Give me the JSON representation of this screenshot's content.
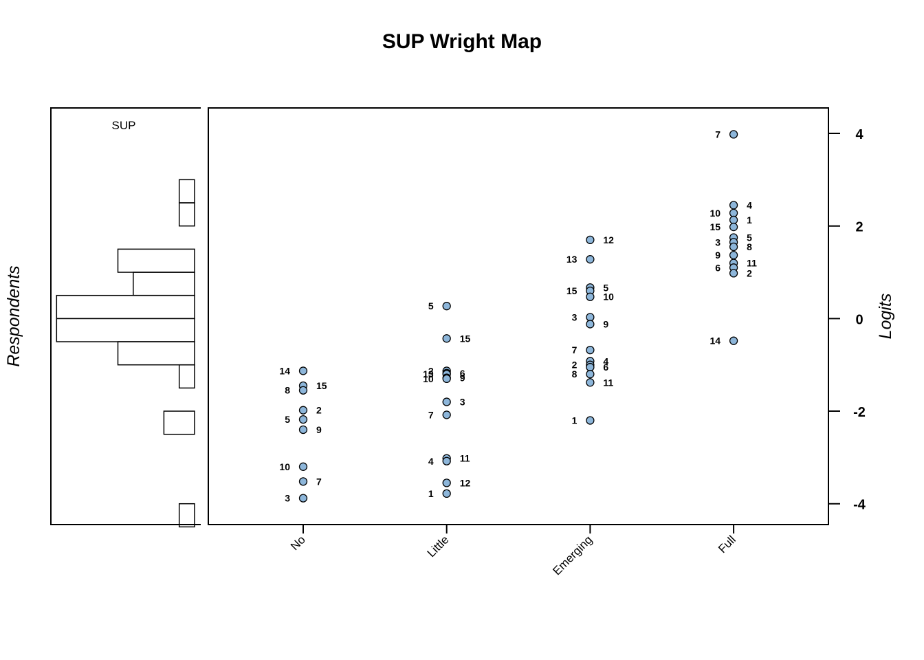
{
  "chart_data": {
    "type": "scatter",
    "title": "SUP Wright Map",
    "person_panel": {
      "label": "Respondents",
      "title": "SUP",
      "histogram": [
        {
          "from": 2.5,
          "to": 3.0,
          "count": 1
        },
        {
          "from": 2.0,
          "to": 2.5,
          "count": 1
        },
        {
          "from": 1.5,
          "to": 2.0,
          "count": 0
        },
        {
          "from": 1.0,
          "to": 1.5,
          "count": 5
        },
        {
          "from": 0.5,
          "to": 1.0,
          "count": 4
        },
        {
          "from": 0.0,
          "to": 0.5,
          "count": 9
        },
        {
          "from": -0.5,
          "to": 0.0,
          "count": 9
        },
        {
          "from": -1.0,
          "to": -0.5,
          "count": 5
        },
        {
          "from": -1.5,
          "to": -1.0,
          "count": 1
        },
        {
          "from": -2.0,
          "to": -1.5,
          "count": 0
        },
        {
          "from": -2.5,
          "to": -2.0,
          "count": 2
        },
        {
          "from": -3.0,
          "to": -2.5,
          "count": 0
        },
        {
          "from": -3.5,
          "to": -3.0,
          "count": 0
        },
        {
          "from": -4.0,
          "to": -3.5,
          "count": 0
        },
        {
          "from": -4.5,
          "to": -4.0,
          "count": 1
        }
      ]
    },
    "ylabel": "Logits",
    "ylim": [
      -4.45,
      4.55
    ],
    "yticks": [
      4,
      2,
      0,
      -2,
      -4
    ],
    "categories": [
      "No",
      "Little",
      "Emerging",
      "Full"
    ],
    "series": [
      {
        "category": "No",
        "points": [
          {
            "label": "14",
            "y": -1.13,
            "side": "left"
          },
          {
            "label": "15",
            "y": -1.45,
            "side": "right"
          },
          {
            "label": "8",
            "y": -1.55,
            "side": "left"
          },
          {
            "label": "2",
            "y": -1.98,
            "side": "right"
          },
          {
            "label": "5",
            "y": -2.18,
            "side": "left"
          },
          {
            "label": "9",
            "y": -2.4,
            "side": "right"
          },
          {
            "label": "10",
            "y": -3.2,
            "side": "left"
          },
          {
            "label": "7",
            "y": -3.52,
            "side": "right"
          },
          {
            "label": "3",
            "y": -3.88,
            "side": "left"
          }
        ]
      },
      {
        "category": "Little",
        "points": [
          {
            "label": "5",
            "y": 0.27,
            "side": "left"
          },
          {
            "label": "15",
            "y": -0.43,
            "side": "right"
          },
          {
            "label": "2",
            "y": -1.13,
            "side": "left"
          },
          {
            "label": "6",
            "y": -1.18,
            "side": "right"
          },
          {
            "label": "13",
            "y": -1.2,
            "side": "left"
          },
          {
            "label": "9",
            "y": -1.28,
            "side": "right"
          },
          {
            "label": "10",
            "y": -1.3,
            "side": "left"
          },
          {
            "label": "3",
            "y": -1.8,
            "side": "right"
          },
          {
            "label": "7",
            "y": -2.08,
            "side": "left"
          },
          {
            "label": "11",
            "y": -3.02,
            "side": "right"
          },
          {
            "label": "4",
            "y": -3.08,
            "side": "left"
          },
          {
            "label": "12",
            "y": -3.55,
            "side": "right"
          },
          {
            "label": "1",
            "y": -3.78,
            "side": "left"
          }
        ]
      },
      {
        "category": "Emerging",
        "points": [
          {
            "label": "12",
            "y": 1.7,
            "side": "right"
          },
          {
            "label": "13",
            "y": 1.28,
            "side": "left"
          },
          {
            "label": "5",
            "y": 0.67,
            "side": "right"
          },
          {
            "label": "15",
            "y": 0.6,
            "side": "left"
          },
          {
            "label": "10",
            "y": 0.47,
            "side": "right"
          },
          {
            "label": "3",
            "y": 0.03,
            "side": "left"
          },
          {
            "label": "9",
            "y": -0.12,
            "side": "right"
          },
          {
            "label": "7",
            "y": -0.68,
            "side": "left"
          },
          {
            "label": "4",
            "y": -0.92,
            "side": "right"
          },
          {
            "label": "2",
            "y": -1.0,
            "side": "left"
          },
          {
            "label": "6",
            "y": -1.05,
            "side": "right"
          },
          {
            "label": "8",
            "y": -1.2,
            "side": "left"
          },
          {
            "label": "11",
            "y": -1.38,
            "side": "right"
          },
          {
            "label": "1",
            "y": -2.2,
            "side": "left"
          }
        ]
      },
      {
        "category": "Full",
        "points": [
          {
            "label": "7",
            "y": 3.98,
            "side": "left"
          },
          {
            "label": "4",
            "y": 2.45,
            "side": "right"
          },
          {
            "label": "10",
            "y": 2.28,
            "side": "left"
          },
          {
            "label": "1",
            "y": 2.13,
            "side": "right"
          },
          {
            "label": "15",
            "y": 1.98,
            "side": "left"
          },
          {
            "label": "5",
            "y": 1.75,
            "side": "right"
          },
          {
            "label": "3",
            "y": 1.65,
            "side": "left"
          },
          {
            "label": "8",
            "y": 1.55,
            "side": "right"
          },
          {
            "label": "9",
            "y": 1.37,
            "side": "left"
          },
          {
            "label": "11",
            "y": 1.2,
            "side": "right"
          },
          {
            "label": "6",
            "y": 1.1,
            "side": "left"
          },
          {
            "label": "2",
            "y": 0.98,
            "side": "right"
          },
          {
            "label": "14",
            "y": -0.48,
            "side": "left"
          }
        ]
      }
    ],
    "point_color": "#8db6da"
  }
}
